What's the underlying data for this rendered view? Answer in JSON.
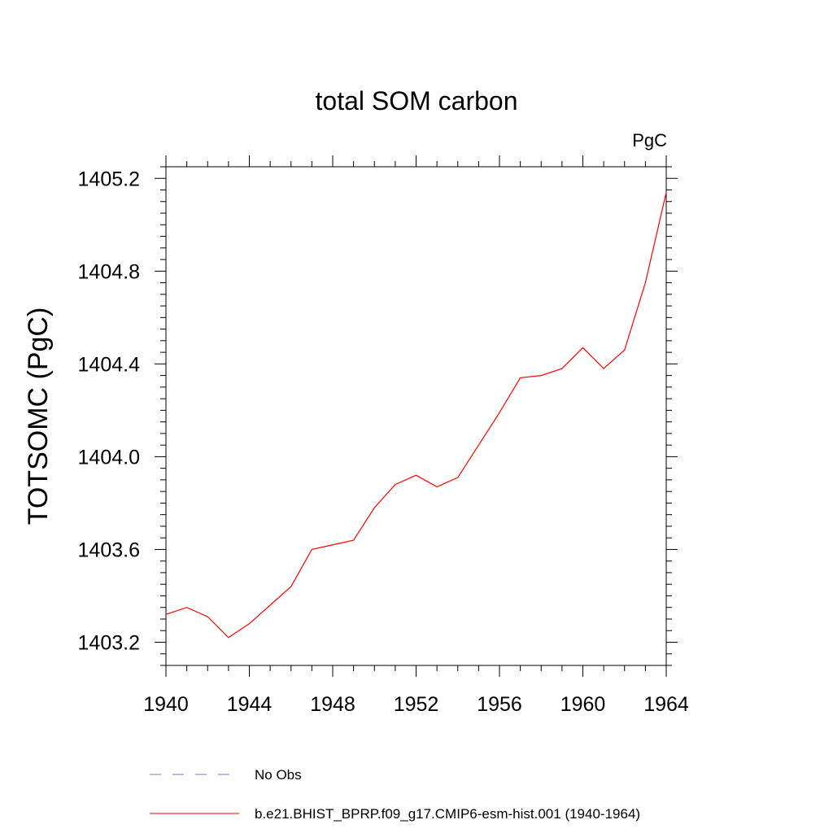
{
  "chart_data": {
    "type": "line",
    "title": "total SOM carbon",
    "units_label": "PgC",
    "ylabel": "TOTSOMC  (PgC)",
    "xlabel": "",
    "xlim": [
      1940,
      1964
    ],
    "ylim": [
      1403.1,
      1405.25
    ],
    "x_ticks": [
      1940,
      1944,
      1948,
      1952,
      1956,
      1960,
      1964
    ],
    "x_tick_labels": [
      "1940",
      "1944",
      "1948",
      "1952",
      "1956",
      "1960",
      "1964"
    ],
    "y_ticks": [
      1403.2,
      1403.6,
      1404.0,
      1404.4,
      1404.8,
      1405.2
    ],
    "y_tick_labels": [
      "1403.2",
      "1403.6",
      "1404.0",
      "1404.4",
      "1404.8",
      "1405.2"
    ],
    "grid": false,
    "legend_position": "bottom",
    "series": [
      {
        "name": "No Obs",
        "color": "#7b6fd0",
        "style": "dashed",
        "values": []
      },
      {
        "name": "b.e21.BHIST_BPRP.f09_g17.CMIP6-esm-hist.001 (1940-1964)",
        "color": "#ff0000",
        "style": "solid",
        "x": [
          1940,
          1941,
          1942,
          1943,
          1944,
          1945,
          1946,
          1947,
          1948,
          1949,
          1950,
          1951,
          1952,
          1953,
          1954,
          1955,
          1956,
          1957,
          1958,
          1959,
          1960,
          1961,
          1962,
          1963,
          1964
        ],
        "values": [
          1403.32,
          1403.35,
          1403.31,
          1403.22,
          1403.28,
          1403.36,
          1403.44,
          1403.6,
          1403.62,
          1403.64,
          1403.78,
          1403.88,
          1403.92,
          1403.87,
          1403.91,
          1404.05,
          1404.19,
          1404.34,
          1404.35,
          1404.38,
          1404.47,
          1404.38,
          1404.46,
          1404.75,
          1405.14
        ]
      }
    ]
  }
}
